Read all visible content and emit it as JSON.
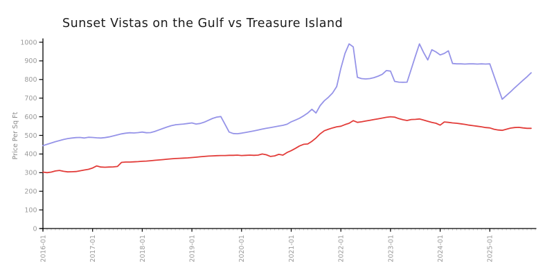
{
  "title": "Sunset Vistas on the Gulf vs Treasure Island",
  "y_axis": {
    "label": "Price Per Sq Ft",
    "ticks": [
      0,
      100,
      200,
      300,
      400,
      500,
      600,
      700,
      800,
      900,
      1000
    ],
    "min": 0,
    "max": 1000
  },
  "x_axis": {
    "tick_labels": [
      "2016-01",
      "2017-01",
      "2018-01",
      "2019-01",
      "2020-01",
      "2021-01",
      "2022-01",
      "2023-01",
      "2024-01",
      "2025-01"
    ],
    "minor_tick_unit": "month",
    "start": "2016-01",
    "end": "2025-12"
  },
  "colors": {
    "background": "#ffffff",
    "axis": "#000000",
    "tick_label": "#9a9a9a",
    "minor_tick": "#c9c9c9",
    "title": "#1a1a1a",
    "y_axis_label": "#8a8a8a",
    "series_blue": "#9593e8",
    "series_red": "#e23b38"
  },
  "chart_data": {
    "type": "line",
    "title": "Sunset Vistas on the Gulf vs Treasure Island",
    "xlabel": "",
    "ylabel": "Price Per Sq Ft",
    "ylim": [
      0,
      1000
    ],
    "y_tick_step": 100,
    "grid": false,
    "legend_position": "none",
    "style": "xkcd-sketch",
    "x_monthly_start": "2016-01",
    "x_monthly_end": "2025-11",
    "points_per_series": 119,
    "series": [
      {
        "name": "Sunset Vistas on the Gulf",
        "color": "#9593e8",
        "values": [
          445,
          452,
          459,
          466,
          472,
          478,
          483,
          486,
          488,
          489,
          486,
          490,
          489,
          487,
          486,
          488,
          492,
          497,
          503,
          508,
          512,
          514,
          513,
          515,
          518,
          514,
          515,
          521,
          529,
          537,
          545,
          552,
          557,
          559,
          561,
          564,
          567,
          561,
          564,
          571,
          581,
          591,
          598,
          601,
          560,
          518,
          510,
          509,
          512,
          516,
          520,
          524,
          529,
          534,
          538,
          542,
          546,
          550,
          554,
          560,
          573,
          582,
          592,
          605,
          620,
          640,
          620,
          660,
          686,
          705,
          728,
          762,
          860,
          940,
          991,
          975,
          812,
          805,
          803,
          805,
          810,
          818,
          828,
          848,
          845,
          790,
          786,
          785,
          786,
          855,
          925,
          991,
          945,
          905,
          960,
          948,
          932,
          940,
          954,
          886,
          884,
          884,
          883,
          884,
          884,
          883,
          884,
          883,
          884,
          820,
          756,
          694,
          714,
          734,
          755,
          775,
          795,
          815,
          836
        ]
      },
      {
        "name": "Treasure Island",
        "color": "#e23b38",
        "values": [
          303,
          300,
          303,
          309,
          312,
          307,
          304,
          305,
          306,
          310,
          314,
          318,
          325,
          336,
          330,
          329,
          330,
          331,
          333,
          355,
          357,
          357,
          358,
          359,
          361,
          362,
          364,
          366,
          368,
          370,
          372,
          374,
          376,
          377,
          378,
          379,
          381,
          383,
          385,
          387,
          389,
          390,
          391,
          392,
          392,
          393,
          393,
          394,
          392,
          393,
          394,
          393,
          394,
          400,
          396,
          387,
          390,
          398,
          394,
          408,
          418,
          430,
          443,
          452,
          454,
          468,
          486,
          508,
          525,
          533,
          540,
          546,
          549,
          558,
          565,
          579,
          570,
          573,
          577,
          581,
          585,
          589,
          593,
          597,
          600,
          598,
          590,
          584,
          580,
          585,
          586,
          588,
          582,
          576,
          570,
          565,
          555,
          572,
          570,
          567,
          565,
          562,
          559,
          555,
          552,
          549,
          546,
          542,
          540,
          533,
          529,
          527,
          533,
          539,
          542,
          543,
          540,
          538,
          538
        ]
      }
    ]
  }
}
